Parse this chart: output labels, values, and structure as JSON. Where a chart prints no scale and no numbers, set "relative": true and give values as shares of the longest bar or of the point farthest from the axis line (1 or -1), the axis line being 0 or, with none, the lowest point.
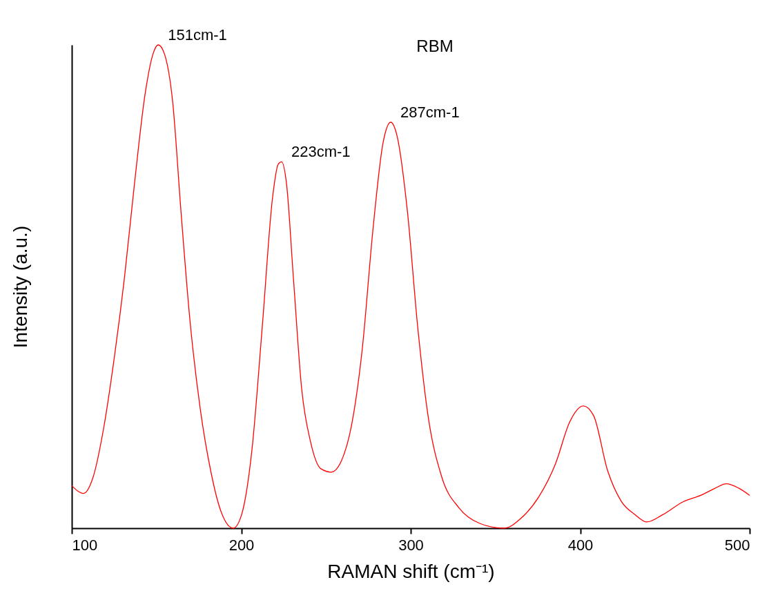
{
  "chart_data": {
    "type": "line",
    "title": "RBM",
    "xlabel": "RAMAN shift (cm⁻¹)",
    "ylabel": "Intensity (a.u.)",
    "relative": true,
    "x": [
      100,
      106.9,
      112.6,
      118.7,
      124.8,
      131,
      137,
      143.2,
      148,
      151,
      154.6,
      159.5,
      164.4,
      169.7,
      175.8,
      181.9,
      188,
      195.3,
      200.2,
      206.3,
      212.4,
      218.5,
      221.8,
      223.8,
      226.7,
      230.8,
      235.6,
      241,
      247,
      253.1,
      259.3,
      265.4,
      271.5,
      277.6,
      283.7,
      288.2,
      291.9,
      298,
      304.1,
      310.2,
      318.3,
      328.5,
      340.7,
      355,
      365.2,
      375.4,
      385.5,
      393.7,
      401.8,
      407.9,
      416.1,
      424.2,
      432.4,
      439.3,
      448.7,
      460.9,
      471.1,
      479.2,
      486.2,
      493.5,
      500
    ],
    "series": [
      {
        "color": "#ff0000",
        "values": [
          0.088,
          0.072,
          0.106,
          0.205,
          0.346,
          0.516,
          0.713,
          0.897,
          0.982,
          1.0,
          0.982,
          0.883,
          0.657,
          0.431,
          0.247,
          0.12,
          0.035,
          0.0,
          0.028,
          0.162,
          0.417,
          0.685,
          0.753,
          0.758,
          0.713,
          0.516,
          0.29,
          0.177,
          0.123,
          0.116,
          0.141,
          0.219,
          0.374,
          0.614,
          0.798,
          0.84,
          0.812,
          0.657,
          0.417,
          0.233,
          0.106,
          0.042,
          0.01,
          0.0,
          0.021,
          0.064,
          0.134,
          0.219,
          0.253,
          0.233,
          0.12,
          0.056,
          0.028,
          0.013,
          0.028,
          0.055,
          0.068,
          0.082,
          0.092,
          0.083,
          0.068
        ]
      }
    ],
    "xlim": [
      100,
      500
    ],
    "xticks": [
      100,
      200,
      300,
      400,
      500
    ],
    "grid": false,
    "marker": "none",
    "line_style": "solid",
    "annotations": [
      {
        "text": "151cm-1",
        "x": 151,
        "y": 1.0
      },
      {
        "text": "223cm-1",
        "x": 223.8,
        "y": 0.758
      },
      {
        "text": "287cm-1",
        "x": 288.2,
        "y": 0.84
      }
    ]
  }
}
